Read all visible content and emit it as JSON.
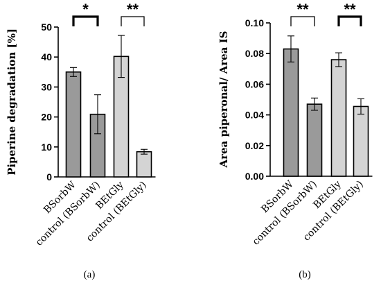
{
  "chart_data": [
    {
      "type": "bar",
      "panel_label": "(a)",
      "categories": [
        "BSorbW",
        "control (BSorbW)",
        "BEtGly",
        "control (BEtGly)"
      ],
      "values": [
        35.0,
        20.9,
        40.2,
        8.4
      ],
      "errors": [
        1.5,
        6.5,
        7.0,
        0.8
      ],
      "colors": [
        "#9a9a9a",
        "#9a9a9a",
        "#d4d4d4",
        "#d4d4d4"
      ],
      "ylabel": "Piperine degradation  [%]",
      "ylim": [
        0,
        50
      ],
      "yticks": [
        "0",
        "10",
        "20",
        "30",
        "40",
        "50"
      ],
      "grid": false,
      "significance": [
        {
          "from": 0,
          "to": 1,
          "label": "*",
          "style": "thick"
        },
        {
          "from": 2,
          "to": 3,
          "label": "**",
          "style": "thin"
        }
      ]
    },
    {
      "type": "bar",
      "panel_label": "(b)",
      "categories": [
        "BSorbW",
        "control (BSorbW)",
        "BEtGly",
        "control (BEtGly)"
      ],
      "values": [
        0.083,
        0.047,
        0.076,
        0.0455
      ],
      "errors": [
        0.0085,
        0.004,
        0.0045,
        0.005
      ],
      "colors": [
        "#9a9a9a",
        "#9a9a9a",
        "#d4d4d4",
        "#d4d4d4"
      ],
      "ylabel": "Area piperonal/ Area IS",
      "ylim": [
        0,
        0.1
      ],
      "yticks": [
        "0.00",
        "0.02",
        "0.04",
        "0.06",
        "0.08",
        "0.10"
      ],
      "grid": false,
      "significance": [
        {
          "from": 0,
          "to": 1,
          "label": "**",
          "style": "thin"
        },
        {
          "from": 2,
          "to": 3,
          "label": "**",
          "style": "thick"
        }
      ]
    }
  ]
}
